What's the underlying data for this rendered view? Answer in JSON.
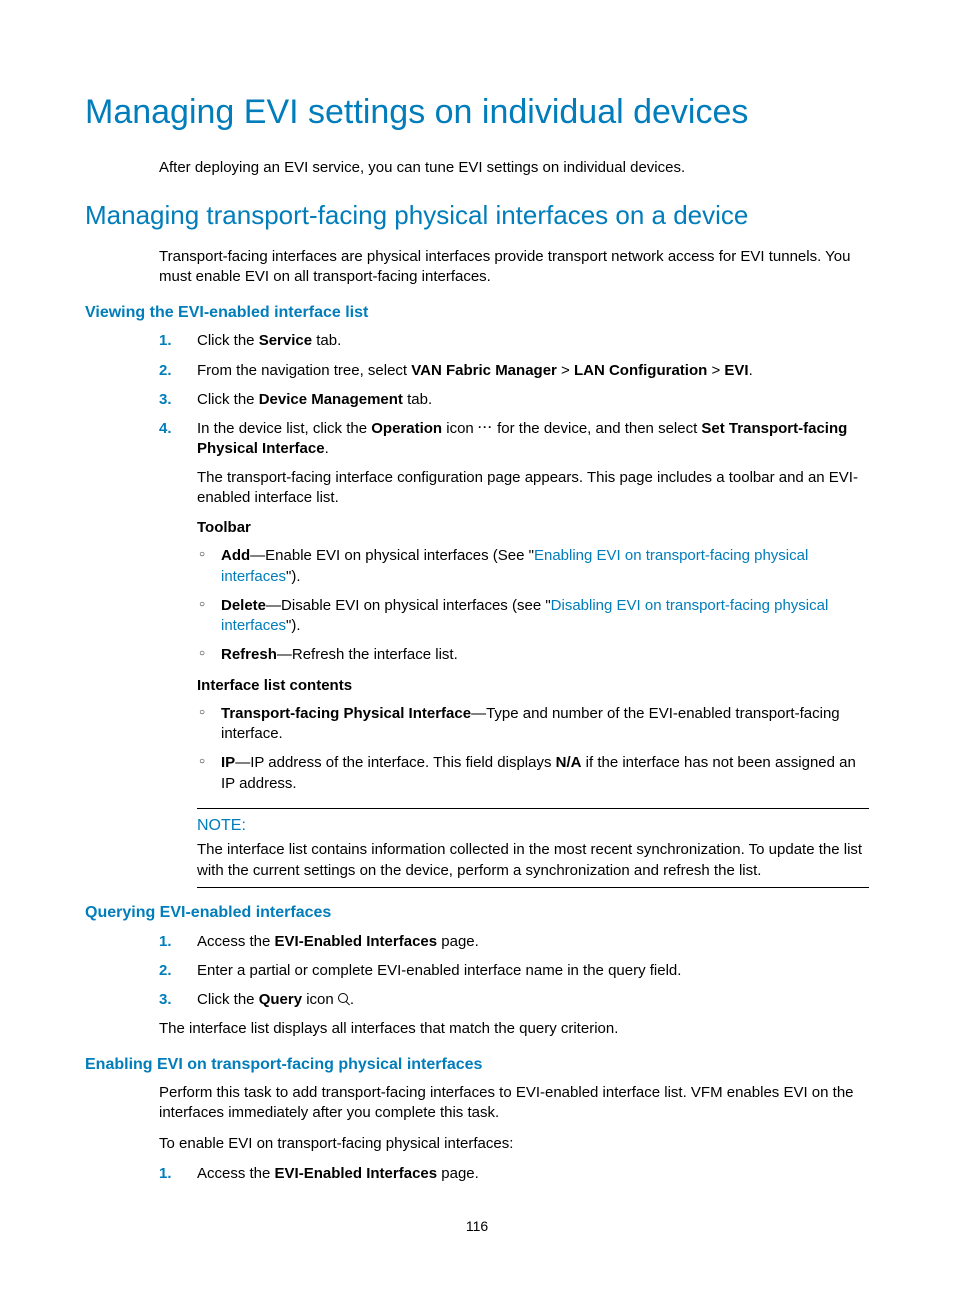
{
  "page": {
    "title": "Managing EVI settings on individual devices",
    "intro": "After deploying an EVI service, you can tune EVI settings on individual devices.",
    "number": "116"
  },
  "section1": {
    "title": "Managing transport-facing physical interfaces on a device",
    "intro": "Transport-facing interfaces are physical interfaces provide transport network access for EVI tunnels. You must enable EVI on all transport-facing interfaces."
  },
  "viewing": {
    "title": "Viewing the EVI-enabled interface list",
    "step1": {
      "n": "1.",
      "a": "Click the ",
      "b": "Service",
      "c": " tab."
    },
    "step2": {
      "n": "2.",
      "a": "From the navigation tree, select ",
      "b": "VAN Fabric Manager",
      "c": " > ",
      "d": "LAN Configuration",
      "e": " > ",
      "f": "EVI",
      "g": "."
    },
    "step3": {
      "n": "3.",
      "a": "Click the ",
      "b": "Device Management",
      "c": " tab."
    },
    "step4": {
      "n": "4.",
      "a": "In the device list, click the ",
      "b": "Operation",
      "c": " icon ",
      "d": " for the device, and then select ",
      "e": "Set Transport-facing Physical Interface",
      "f": ".",
      "desc": "The transport-facing interface configuration page appears. This page includes a toolbar and an EVI-enabled interface list."
    },
    "toolbar": {
      "label": "Toolbar",
      "add": {
        "a": "Add",
        "b": "—Enable EVI on physical interfaces (See \"",
        "link": "Enabling EVI on transport-facing physical interfaces",
        "c": "\")."
      },
      "delete": {
        "a": "Delete",
        "b": "—Disable EVI on physical interfaces (see \"",
        "link": "Disabling EVI on transport-facing physical interfaces",
        "c": "\")."
      },
      "refresh": {
        "a": "Refresh",
        "b": "—Refresh the interface list."
      }
    },
    "contents": {
      "label": "Interface list contents",
      "item1": {
        "a": "Transport-facing Physical Interface",
        "b": "—Type and number of the EVI-enabled transport-facing interface."
      },
      "item2": {
        "a": "IP",
        "b": "—IP address of the interface. This field displays ",
        "c": "N/A",
        "d": " if the interface has not been assigned an IP address."
      }
    },
    "note": {
      "label": "NOTE:",
      "text": "The interface list contains information collected in the most recent synchronization. To update the list with the current settings on the device, perform a synchronization and refresh the list."
    }
  },
  "querying": {
    "title": "Querying EVI-enabled interfaces",
    "step1": {
      "n": "1.",
      "a": "Access the ",
      "b": "EVI-Enabled Interfaces",
      "c": " page."
    },
    "step2": {
      "n": "2.",
      "a": "Enter a partial or complete EVI-enabled interface name in the query field."
    },
    "step3": {
      "n": "3.",
      "a": "Click the ",
      "b": "Query",
      "c": " icon ",
      "d": "."
    },
    "closing": "The interface list displays all interfaces that match the query criterion."
  },
  "enabling": {
    "title": "Enabling EVI on transport-facing physical interfaces",
    "p1": "Perform this task to add transport-facing interfaces to EVI-enabled interface list. VFM enables EVI on the interfaces immediately after you complete this task.",
    "p2": "To enable EVI on transport-facing physical interfaces:",
    "step1": {
      "n": "1.",
      "a": "Access the ",
      "b": "EVI-Enabled Interfaces",
      "c": " page."
    }
  }
}
